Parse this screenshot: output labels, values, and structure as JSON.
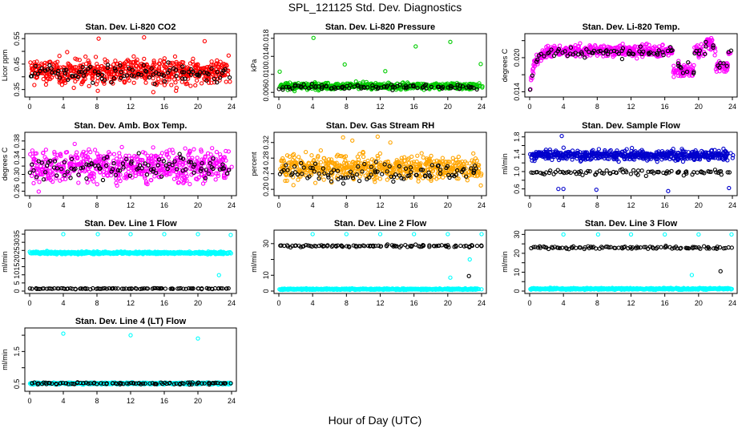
{
  "figure": {
    "title": "SPL_121125  Std. Dev. Diagnostics",
    "xlabel": "Hour of Day (UTC)"
  },
  "chart_data": [
    {
      "type": "scatter",
      "title": "Stan. Dev. Li-820 CO2",
      "ylabel": "Licor ppm",
      "xlim": [
        0,
        24
      ],
      "ylim": [
        0.33,
        0.56
      ],
      "xticks": [
        0,
        4,
        8,
        12,
        16,
        20,
        24
      ],
      "yticks": [
        0.35,
        0.4,
        0.45,
        0.5,
        0.55
      ],
      "ytick_labels": [
        "0.35",
        "0.45",
        "0.55"
      ],
      "series": [
        {
          "color": "#ff0000",
          "points": "600",
          "x_range": [
            0,
            24
          ],
          "y_center": 0.42,
          "y_spread": 0.035,
          "outliers": [
            [
              8.2,
              0.55
            ],
            [
              13.6,
              0.555
            ],
            [
              20.8,
              0.54
            ],
            [
              14.7,
              0.34
            ],
            [
              17.4,
              0.345
            ],
            [
              8.1,
              0.345
            ]
          ]
        },
        {
          "color": "#000000",
          "points": "100",
          "x_range": [
            0,
            24
          ],
          "y_center": 0.415,
          "y_spread": 0.025
        }
      ]
    },
    {
      "type": "scatter",
      "title": "Stan. Dev. Li-820 Pressure",
      "ylabel": "kPa",
      "xlim": [
        0,
        24
      ],
      "ylim": [
        0.0055,
        0.0185
      ],
      "xticks": [
        0,
        4,
        8,
        12,
        16,
        20,
        24
      ],
      "yticks": [
        0.006,
        0.01,
        0.014,
        0.018
      ],
      "ytick_labels": [
        "0.006",
        "0.010",
        "0.014",
        "0.018"
      ],
      "series": [
        {
          "color": "#00cc00",
          "points": "600",
          "x_range": [
            0,
            24
          ],
          "y_center": 0.0074,
          "y_spread": 0.0005,
          "outliers": [
            [
              0.1,
              0.0106
            ],
            [
              4.1,
              0.0181
            ],
            [
              7.8,
              0.0122
            ],
            [
              16.2,
              0.0162
            ],
            [
              20.3,
              0.0172
            ],
            [
              23.9,
              0.0123
            ],
            [
              12.6,
              0.0107
            ]
          ]
        },
        {
          "color": "#000000",
          "points": "100",
          "x_range": [
            0,
            24
          ],
          "y_center": 0.0072,
          "y_spread": 0.0004
        }
      ]
    },
    {
      "type": "scatter",
      "title": "Stan. Dev. Li-820 Temp.",
      "ylabel": "degrees C",
      "xlim": [
        0,
        24
      ],
      "ylim": [
        0.0135,
        0.0238
      ],
      "xticks": [
        0,
        4,
        8,
        12,
        16,
        20,
        24
      ],
      "yticks": [
        0.014,
        0.017,
        0.02,
        0.023
      ],
      "ytick_labels": [
        "0.014",
        "0.020"
      ],
      "series": [
        {
          "color": "#ff00ff",
          "points": "600",
          "x_range": [
            0,
            24
          ],
          "shape": "temp",
          "y_center": 0.0212,
          "y_spread": 0.0007
        },
        {
          "color": "#000000",
          "points": "90",
          "x_range": [
            0,
            24
          ],
          "shape": "temp",
          "y_center": 0.021,
          "y_spread": 0.0006
        }
      ]
    },
    {
      "type": "scatter",
      "title": "Stan. Dev. Amb. Box Temp.",
      "ylabel": "degrees C",
      "xlim": [
        0,
        24
      ],
      "ylim": [
        0.255,
        0.395
      ],
      "xticks": [
        0,
        4,
        8,
        12,
        16,
        20,
        24
      ],
      "yticks": [
        0.26,
        0.28,
        0.3,
        0.32,
        0.34,
        0.36,
        0.38
      ],
      "ytick_labels": [
        "0.26",
        "0.30",
        "0.34",
        "0.38"
      ],
      "series": [
        {
          "color": "#ff00ff",
          "points": "600",
          "x_range": [
            0,
            24
          ],
          "y_center": 0.32,
          "y_spread": 0.027
        },
        {
          "color": "#000000",
          "points": "100",
          "x_range": [
            0,
            24
          ],
          "y_center": 0.318,
          "y_spread": 0.02
        }
      ]
    },
    {
      "type": "scatter",
      "title": "Stan. Dev. Gas Stream RH",
      "ylabel": "percent",
      "xlim": [
        0,
        24
      ],
      "ylim": [
        0.19,
        0.34
      ],
      "xticks": [
        0,
        4,
        8,
        12,
        16,
        20,
        24
      ],
      "yticks": [
        0.2,
        0.24,
        0.28,
        0.32
      ],
      "ytick_labels": [
        "0.20",
        "0.24",
        "0.28",
        "0.32"
      ],
      "series": [
        {
          "color": "#ffa500",
          "points": "600",
          "x_range": [
            0,
            24
          ],
          "y_center": 0.256,
          "y_spread": 0.022,
          "outliers": [
            [
              7.6,
              0.333
            ],
            [
              11.7,
              0.335
            ],
            [
              13.2,
              0.32
            ],
            [
              8.7,
              0.325
            ]
          ]
        },
        {
          "color": "#000000",
          "points": "100",
          "x_range": [
            0,
            24
          ],
          "y_center": 0.245,
          "y_spread": 0.016
        }
      ]
    },
    {
      "type": "scatter",
      "title": "Stan. Dev. Sample Flow",
      "ylabel": "ml/min",
      "xlim": [
        0,
        24
      ],
      "ylim": [
        0.5,
        1.85
      ],
      "xticks": [
        0,
        4,
        8,
        12,
        16,
        20,
        24
      ],
      "yticks": [
        0.6,
        0.8,
        1.0,
        1.2,
        1.4,
        1.6,
        1.8
      ],
      "ytick_labels": [
        "0.6",
        "1.0",
        "1.4",
        "1.8"
      ],
      "series": [
        {
          "color": "#0000cc",
          "points": "600",
          "x_range": [
            0,
            24
          ],
          "y_center": 1.38,
          "y_spread": 0.08,
          "outliers": [
            [
              3.8,
              1.82
            ],
            [
              3.4,
              0.6
            ],
            [
              4.0,
              0.6
            ],
            [
              7.9,
              0.58
            ],
            [
              16.4,
              0.55
            ],
            [
              23.6,
              0.62
            ]
          ]
        },
        {
          "color": "#000000",
          "points": "90",
          "x_range": [
            0,
            24
          ],
          "y_center": 0.98,
          "y_spread": 0.04
        }
      ]
    },
    {
      "type": "scatter",
      "title": "Stan. Dev. Line 1 Flow",
      "ylabel": "ml/min",
      "xlim": [
        0,
        24
      ],
      "ylim": [
        0,
        36
      ],
      "xticks": [
        0,
        4,
        8,
        12,
        16,
        20,
        24
      ],
      "yticks": [
        0,
        5,
        10,
        15,
        20,
        25,
        30,
        35
      ],
      "ytick_labels": [
        "0",
        "5",
        "10",
        "15",
        "20",
        "25",
        "30",
        "35"
      ],
      "series": [
        {
          "color": "#00ffff",
          "points": "600",
          "x_range": [
            0,
            24
          ],
          "y_center": 23.5,
          "y_spread": 0.5,
          "outliers": [
            [
              4.0,
              35
            ],
            [
              8.1,
              35
            ],
            [
              12.0,
              35
            ],
            [
              16.0,
              35
            ],
            [
              20.0,
              35
            ],
            [
              23.9,
              34.5
            ],
            [
              22.5,
              9.8
            ]
          ]
        },
        {
          "color": "#000000",
          "points": "100",
          "x_range": [
            0,
            24
          ],
          "y_center": 1.5,
          "y_spread": 0.2
        }
      ]
    },
    {
      "type": "scatter",
      "title": "Stan. Dev. Line 2 Flow",
      "ylabel": "ml/min",
      "xlim": [
        0,
        24
      ],
      "ylim": [
        0,
        37
      ],
      "xticks": [
        0,
        4,
        8,
        12,
        16,
        20,
        24
      ],
      "yticks": [
        0,
        10,
        20,
        30
      ],
      "ytick_labels": [
        "0",
        "10",
        "30"
      ],
      "series": [
        {
          "color": "#00ffff",
          "points": "600",
          "x_range": [
            0,
            24
          ],
          "y_center": 1.2,
          "y_spread": 0.3,
          "outliers": [
            [
              4.0,
              36
            ],
            [
              8.0,
              36
            ],
            [
              12.0,
              36
            ],
            [
              16.0,
              36
            ],
            [
              20.0,
              36
            ],
            [
              24.0,
              36
            ],
            [
              20.3,
              8.5
            ],
            [
              22.6,
              20
            ]
          ]
        },
        {
          "color": "#000000",
          "points": "100",
          "x_range": [
            0,
            24
          ],
          "y_center": 28.5,
          "y_spread": 0.5,
          "outliers": [
            [
              22.5,
              9.5
            ]
          ]
        }
      ]
    },
    {
      "type": "scatter",
      "title": "Stan. Dev. Line 3 Flow",
      "ylabel": "ml/min",
      "xlim": [
        0,
        24
      ],
      "ylim": [
        0,
        31
      ],
      "xticks": [
        0,
        4,
        8,
        12,
        16,
        20,
        24
      ],
      "yticks": [
        0,
        5,
        10,
        15,
        20,
        25,
        30
      ],
      "ytick_labels": [
        "0",
        "10",
        "20",
        "30"
      ],
      "series": [
        {
          "color": "#00ffff",
          "points": "600",
          "x_range": [
            0,
            24
          ],
          "y_center": 1.2,
          "y_spread": 0.3,
          "outliers": [
            [
              4.0,
              30
            ],
            [
              8.1,
              30
            ],
            [
              12.0,
              30
            ],
            [
              16.0,
              30
            ],
            [
              20.0,
              30
            ],
            [
              23.9,
              30
            ],
            [
              19.2,
              8.5
            ]
          ]
        },
        {
          "color": "#000000",
          "points": "100",
          "x_range": [
            0,
            24
          ],
          "y_center": 23,
          "y_spread": 0.5,
          "outliers": [
            [
              22.6,
              10.5
            ]
          ]
        }
      ]
    },
    {
      "type": "scatter",
      "title": "Stan. Dev. Line 4 (LT) Flow",
      "ylabel": "ml/min",
      "xlim": [
        0,
        24
      ],
      "ylim": [
        0.35,
        2.15
      ],
      "xticks": [
        0,
        4,
        8,
        12,
        16,
        20,
        24
      ],
      "yticks": [
        0.5,
        1.0,
        1.5,
        2.0
      ],
      "ytick_labels": [
        "0.5",
        "1.5"
      ],
      "series": [
        {
          "color": "#00ffff",
          "points": "600",
          "x_range": [
            0,
            24
          ],
          "y_center": 0.52,
          "y_spread": 0.02,
          "outliers": [
            [
              4.0,
              2.05
            ],
            [
              12.0,
              2.0
            ],
            [
              20.0,
              1.9
            ]
          ]
        },
        {
          "color": "#000000",
          "points": "100",
          "x_range": [
            0,
            24
          ],
          "y_center": 0.52,
          "y_spread": 0.02
        }
      ]
    }
  ]
}
